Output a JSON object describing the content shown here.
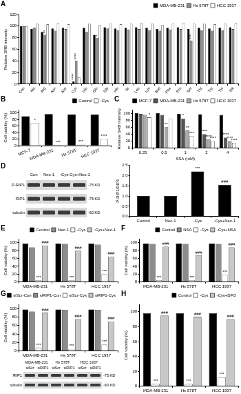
{
  "chart_data": [
    {
      "type": "bar",
      "panel": "A",
      "y_label": "Relative SRB intensity",
      "legend": "upper right",
      "grid": false,
      "categories": [
        "Con",
        "Ala",
        "Arg",
        "Asn",
        "Asp",
        "Cys",
        "Glu",
        "Gln",
        "Gly",
        "His",
        "Ile",
        "Leu",
        "Lys",
        "Met",
        "Phe",
        "Pro",
        "Ser",
        "Thr",
        "Trp",
        "Tyr",
        "Val"
      ],
      "ylim": [
        0,
        120
      ],
      "yticks": [
        0,
        20,
        40,
        60,
        80,
        100,
        120
      ],
      "series": [
        {
          "name": "MDA-MB-231",
          "color": "#000000",
          "values": [
            100,
            95,
            90,
            96,
            97,
            5,
            97,
            85,
            98,
            96,
            97,
            98,
            97,
            95,
            97,
            98,
            95,
            97,
            96,
            97,
            98
          ],
          "sig": [
            null,
            null,
            null,
            null,
            null,
            "****",
            null,
            null,
            null,
            null,
            null,
            null,
            null,
            null,
            null,
            null,
            null,
            null,
            null,
            null,
            null
          ]
        },
        {
          "name": "Hs 578T",
          "color": "#8c8c8c",
          "values": [
            100,
            97,
            85,
            92,
            95,
            40,
            90,
            80,
            96,
            93,
            94,
            95,
            93,
            92,
            94,
            95,
            75,
            93,
            92,
            93,
            95
          ],
          "sig": [
            null,
            null,
            "**",
            null,
            null,
            "****",
            null,
            "*",
            null,
            null,
            null,
            null,
            null,
            null,
            null,
            null,
            "***",
            null,
            null,
            null,
            null
          ]
        },
        {
          "name": "HCC 1937",
          "color": "#ffffff",
          "values": [
            100,
            104,
            103,
            105,
            103,
            12,
            104,
            102,
            104,
            103,
            104,
            105,
            104,
            102,
            104,
            105,
            104,
            104,
            103,
            104,
            105
          ]
        }
      ]
    },
    {
      "type": "bar",
      "panel": "B",
      "y_label": "Cell viability (%)",
      "legend": "upper right",
      "grid": false,
      "categories": [
        "MCF-7",
        "MDA-MB-231",
        "Hs 578T",
        "HCC 1937"
      ],
      "ylim": [
        0,
        110
      ],
      "yticks": [
        0,
        20,
        40,
        60,
        80,
        100
      ],
      "series": [
        {
          "name": "Control",
          "color": "#000000",
          "values": [
            90,
            97,
            96,
            95
          ]
        },
        {
          "name": "-Cys",
          "color": "#ffffff",
          "values": [
            70,
            2,
            3,
            20
          ],
          "sig": [
            "*",
            "***",
            "***",
            "****"
          ]
        }
      ]
    },
    {
      "type": "bar",
      "panel": "C",
      "y_label": "Relative SRB intensity",
      "x_label": "SSA (mM)",
      "legend": "upper right",
      "grid": false,
      "categories": [
        "0.25",
        "0.5",
        "1",
        "2",
        "4"
      ],
      "ylim": [
        0,
        110
      ],
      "yticks": [
        0,
        20,
        40,
        60,
        80,
        100
      ],
      "series": [
        {
          "name": "MCF-7",
          "color": "#000000",
          "values": [
            100,
            100,
            98,
            97,
            95
          ]
        },
        {
          "name": "MDA-MB-231",
          "color": "#555555",
          "values": [
            98,
            95,
            85,
            40,
            30
          ],
          "sig": [
            null,
            null,
            "*",
            "****",
            "****"
          ]
        },
        {
          "name": "Hs 578T",
          "color": "#aaaaaa",
          "values": [
            95,
            60,
            50,
            25,
            20
          ],
          "sig": [
            null,
            "**",
            "**",
            "****",
            "****"
          ]
        },
        {
          "name": "HCC 1937",
          "color": "#ffffff",
          "values": [
            88,
            85,
            35,
            20,
            15
          ],
          "sig": [
            "*",
            null,
            "***",
            "****",
            "****"
          ]
        }
      ]
    },
    {
      "type": "bar",
      "y_label": "P-RIP1/RIP1",
      "grid": false,
      "categories": [
        "Control",
        "Nec-1",
        "-Cys",
        "-Cys+Nec-1"
      ],
      "values": [
        1,
        1,
        2.2,
        1.55
      ],
      "color": "#000000",
      "sig": [
        null,
        null,
        "***",
        "###"
      ],
      "ylim": [
        0,
        2.5
      ],
      "yticks": [
        {
          "value": 0,
          "label": "0.0"
        },
        {
          "value": 0.5,
          "label": "0.5"
        },
        {
          "value": 1,
          "label": "1.0"
        },
        {
          "value": 1.5,
          "label": "1.5"
        },
        {
          "value": 2,
          "label": "2.0"
        },
        {
          "value": 2.5,
          "label": "2.5"
        }
      ]
    },
    {
      "type": "bar",
      "panel": "E",
      "y_label": "Cell viability (%)",
      "legend": "upper right",
      "grid": false,
      "categories": [
        "MDA-MB-231",
        "Hs 578T",
        "HCC 1937"
      ],
      "ylim": [
        0,
        110
      ],
      "yticks": [
        0,
        20,
        40,
        60,
        80,
        100
      ],
      "series": [
        {
          "name": "Control",
          "color": "#000000",
          "values": [
            98,
            98,
            98
          ]
        },
        {
          "name": "Nec-1",
          "color": "#8c8c8c",
          "values": [
            88,
            97,
            95
          ]
        },
        {
          "name": "-Cys",
          "color": "#ffffff",
          "values": [
            5,
            5,
            20
          ],
          "sig": [
            "***",
            "***",
            "***"
          ]
        },
        {
          "name": "-Cys+Nec-1",
          "color": "#c8c8c8",
          "values": [
            93,
            80,
            65
          ],
          "sig": [
            "###",
            "###",
            "###"
          ]
        }
      ]
    },
    {
      "type": "bar",
      "panel": "F",
      "y_label": "Cell viability (%)",
      "legend": "upper right",
      "grid": false,
      "categories": [
        "MDA-MB-231",
        "Hs 578T",
        "HCC 1937"
      ],
      "ylim": [
        0,
        110
      ],
      "yticks": [
        0,
        20,
        40,
        60,
        80,
        100
      ],
      "series": [
        {
          "name": "Control",
          "color": "#000000",
          "values": [
            98,
            98,
            98
          ]
        },
        {
          "name": "NSA",
          "color": "#8c8c8c",
          "values": [
            97,
            97,
            97
          ]
        },
        {
          "name": "-Cys",
          "color": "#ffffff",
          "values": [
            5,
            5,
            18
          ],
          "sig": [
            "***",
            "***",
            "***"
          ]
        },
        {
          "name": "-Cys+NSA",
          "color": "#c8c8c8",
          "values": [
            90,
            68,
            88
          ],
          "sig": [
            "###",
            "###",
            "###"
          ]
        }
      ]
    },
    {
      "type": "bar",
      "panel": "G",
      "y_label": "Cell viability (%)",
      "legend": "upper right",
      "grid": false,
      "categories": [
        "MDA-MB-231",
        "Hs 578T",
        "HCC 1937"
      ],
      "ylim": [
        0,
        110
      ],
      "yticks": [
        0,
        20,
        40,
        60,
        80,
        100
      ],
      "series": [
        {
          "name": "siScr-Con",
          "color": "#000000",
          "values": [
            98,
            98,
            98
          ]
        },
        {
          "name": "siRIP1-Con",
          "color": "#8c8c8c",
          "values": [
            93,
            97,
            97
          ]
        },
        {
          "name": "siScr-Cys",
          "color": "#ffffff",
          "values": [
            8,
            5,
            15
          ],
          "sig": [
            "***",
            "***",
            "***"
          ]
        },
        {
          "name": "siRIP1-Cys",
          "color": "#c8c8c8",
          "values": [
            90,
            75,
            70
          ],
          "sig": [
            "###",
            "###",
            "###"
          ]
        }
      ]
    },
    {
      "type": "bar",
      "panel": "H",
      "y_label": "Cell viability (%)",
      "legend": "upper right",
      "grid": false,
      "categories": [
        "MDA-MB-231",
        "Hs 578T",
        "HCC 1937"
      ],
      "ylim": [
        0,
        110
      ],
      "yticks": [
        0,
        20,
        40,
        60,
        80,
        100
      ],
      "series": [
        {
          "name": "Control",
          "color": "#000000",
          "values": [
            98,
            98,
            98
          ]
        },
        {
          "name": "-Cys",
          "color": "#ffffff",
          "values": [
            3,
            3,
            12
          ],
          "sig": [
            "***",
            "***",
            "***"
          ]
        },
        {
          "name": "-Cys+DFO",
          "color": "#c8c8c8",
          "values": [
            95,
            93,
            90
          ],
          "sig": [
            "###",
            "###",
            "###"
          ]
        }
      ]
    }
  ],
  "blots": [
    {
      "panel": "D",
      "lanes": [
        "Con",
        "Nec-1",
        "-Cys",
        "-Cys+Nec-1"
      ],
      "rows": [
        {
          "name": "P-RIP1",
          "size": "-75 KD"
        },
        {
          "name": "RIP1",
          "size": "-75 KD"
        },
        {
          "name": "tubulin",
          "size": "-60 KD"
        }
      ]
    },
    {
      "groups": [
        "MDA-MB-231",
        "Hs 578T",
        "HCC 1937"
      ],
      "lanes": [
        "siScr",
        "siRIP1",
        "siScr",
        "siRIP1",
        "siScr",
        "siRIP1"
      ],
      "rows": [
        {
          "name": "RIP1",
          "size": "-75 KD"
        },
        {
          "name": "tubulin",
          "size": "-60 KD"
        }
      ]
    }
  ]
}
